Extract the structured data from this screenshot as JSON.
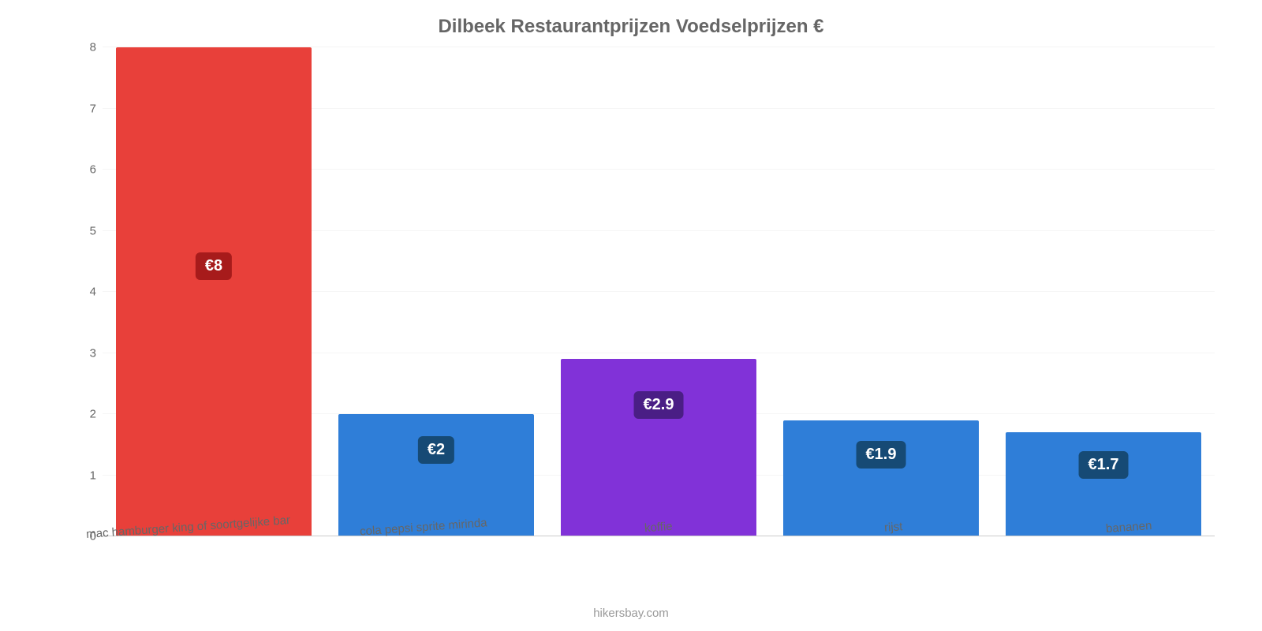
{
  "chart": {
    "type": "bar",
    "title": "Dilbeek Restaurantprijzen Voedselprijzen €",
    "title_fontsize": 24,
    "title_color": "#666666",
    "background_color": "#ffffff",
    "grid_color": "#f5f5f5",
    "axis_line_color": "#cccccc",
    "axis_label_color": "#666666",
    "axis_label_fontsize": 15,
    "ymin": 0,
    "ymax": 8,
    "ytick_step": 1,
    "yticks": [
      0,
      1,
      2,
      3,
      4,
      5,
      6,
      7,
      8
    ],
    "bar_width_pct": 88,
    "data_label_fontsize": 20,
    "categories": [
      "mac hamburger king of soortgelijke bar",
      "cola pepsi sprite mirinda",
      "koffie",
      "rijst",
      "bananen"
    ],
    "values": [
      8,
      2,
      2.9,
      1.9,
      1.7
    ],
    "value_labels": [
      "€8",
      "€2",
      "€2.9",
      "€1.9",
      "€1.7"
    ],
    "bar_colors": [
      "#e8403a",
      "#2f7ed8",
      "#8132d8",
      "#2f7ed8",
      "#2f7ed8"
    ],
    "label_bg_colors": [
      "#a71b1b",
      "#164a75",
      "#4a1e85",
      "#164a75",
      "#164a75"
    ],
    "credit": "hikersbay.com",
    "credit_color": "#999999"
  }
}
